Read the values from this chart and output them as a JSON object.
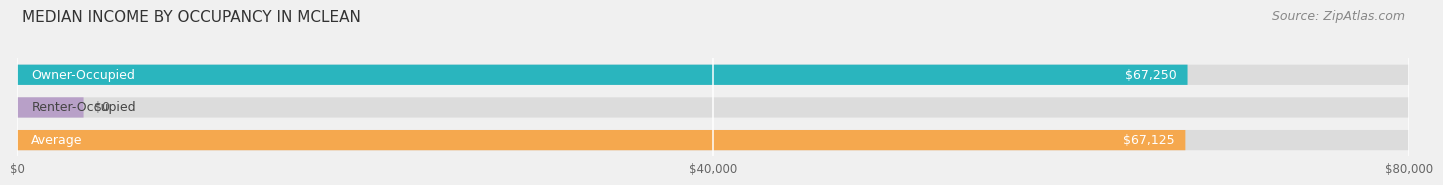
{
  "title": "MEDIAN INCOME BY OCCUPANCY IN MCLEAN",
  "source": "Source: ZipAtlas.com",
  "categories": [
    "Owner-Occupied",
    "Renter-Occupied",
    "Average"
  ],
  "values": [
    67250,
    0,
    67125
  ],
  "bar_colors": [
    "#2ab5be",
    "#b8a0c8",
    "#f5a84e"
  ],
  "value_labels": [
    "$67,250",
    "$0",
    "$67,125"
  ],
  "xlim": [
    0,
    80000
  ],
  "xticks": [
    0,
    40000,
    80000
  ],
  "xtick_labels": [
    "$0",
    "$40,000",
    "$80,000"
  ],
  "background_color": "#f0f0f0",
  "bar_bg_color": "#dcdcdc",
  "title_fontsize": 11,
  "source_fontsize": 9,
  "label_fontsize": 9,
  "value_fontsize": 9
}
